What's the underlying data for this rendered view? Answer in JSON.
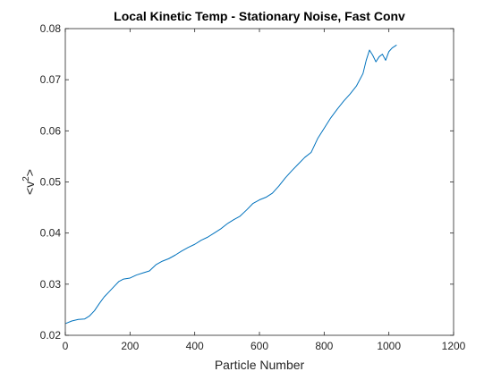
{
  "chart_data": {
    "type": "line",
    "title": "Local Kinetic Temp - Stationary Noise, Fast Conv",
    "xlabel": "Particle Number",
    "ylabel": "<v^2>",
    "ylabel_base": "<v",
    "ylabel_sup": "2",
    "ylabel_end": ">",
    "xlim": [
      0,
      1200
    ],
    "ylim": [
      0.02,
      0.08
    ],
    "x_ticks": [
      0,
      200,
      400,
      600,
      800,
      1000,
      1200
    ],
    "y_ticks": [
      0.02,
      0.03,
      0.04,
      0.05,
      0.06,
      0.07,
      0.08
    ],
    "x_tick_labels": [
      "0",
      "200",
      "400",
      "600",
      "800",
      "1000",
      "1200"
    ],
    "y_tick_labels": [
      "0.02",
      "0.03",
      "0.04",
      "0.05",
      "0.06",
      "0.07",
      "0.08"
    ],
    "grid": false,
    "series": [
      {
        "color": "#0072BD",
        "x": [
          1,
          20,
          40,
          60,
          75,
          90,
          105,
          120,
          135,
          150,
          165,
          180,
          200,
          220,
          240,
          260,
          280,
          300,
          320,
          340,
          360,
          380,
          400,
          420,
          440,
          460,
          480,
          500,
          520,
          540,
          560,
          580,
          600,
          620,
          640,
          660,
          680,
          700,
          720,
          740,
          760,
          780,
          800,
          820,
          840,
          860,
          880,
          900,
          920,
          930,
          940,
          950,
          960,
          970,
          980,
          990,
          1000,
          1010,
          1024
        ],
        "y": [
          0.0223,
          0.0228,
          0.0231,
          0.0232,
          0.0238,
          0.0248,
          0.0262,
          0.0275,
          0.0285,
          0.0295,
          0.0305,
          0.031,
          0.0312,
          0.0318,
          0.0322,
          0.0326,
          0.0338,
          0.0345,
          0.035,
          0.0357,
          0.0365,
          0.0372,
          0.0378,
          0.0386,
          0.0392,
          0.04,
          0.0408,
          0.0418,
          0.0426,
          0.0433,
          0.0445,
          0.0458,
          0.0465,
          0.047,
          0.0478,
          0.0492,
          0.0508,
          0.0522,
          0.0535,
          0.0548,
          0.0558,
          0.0585,
          0.0605,
          0.0625,
          0.0642,
          0.0658,
          0.0672,
          0.0688,
          0.0712,
          0.0738,
          0.0758,
          0.0748,
          0.0735,
          0.0745,
          0.075,
          0.0738,
          0.0755,
          0.0762,
          0.0768
        ]
      }
    ]
  }
}
